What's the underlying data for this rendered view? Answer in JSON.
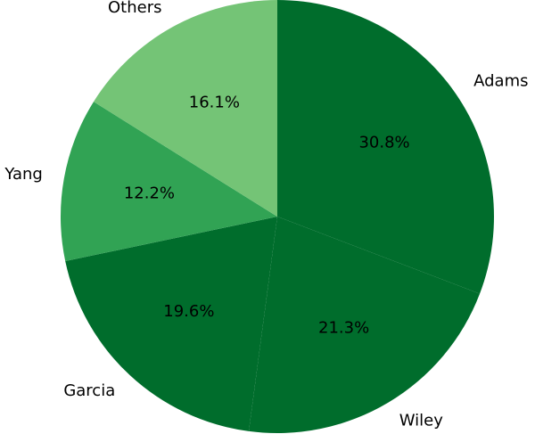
{
  "chart_data": {
    "type": "pie",
    "title": "",
    "start_angle_deg": 90,
    "direction": "clockwise",
    "slices": [
      {
        "label": "Adams",
        "value": 30.8,
        "pct_label": "30.8%",
        "color": "#006d2c"
      },
      {
        "label": "Wiley",
        "value": 21.3,
        "pct_label": "21.3%",
        "color": "#006d2c"
      },
      {
        "label": "Garcia",
        "value": 19.6,
        "pct_label": "19.6%",
        "color": "#006d2c"
      },
      {
        "label": "Yang",
        "value": 12.2,
        "pct_label": "12.2%",
        "color": "#31a354"
      },
      {
        "label": "Others",
        "value": 16.1,
        "pct_label": "16.1%",
        "color": "#74c476"
      }
    ]
  }
}
